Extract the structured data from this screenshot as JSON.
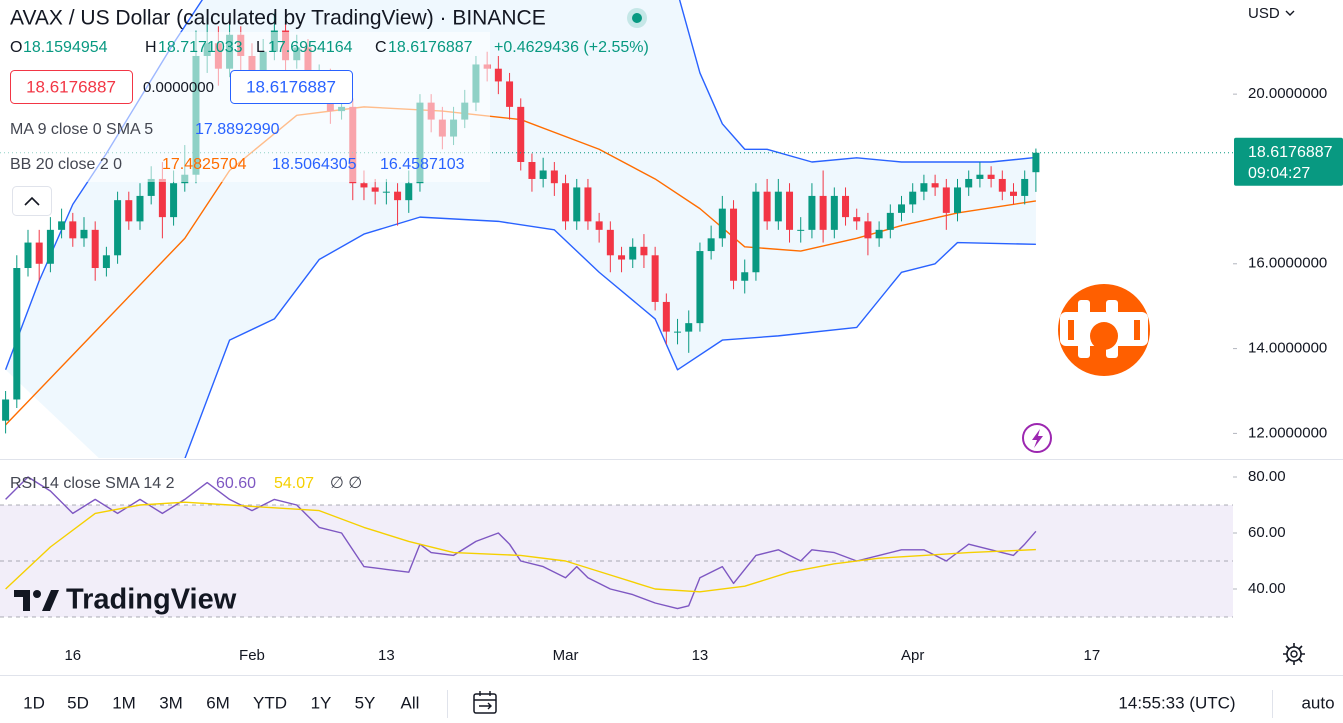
{
  "header": {
    "title": "AVAX / US Dollar (calculated by TradingView) · BINANCE",
    "ohlc_labels": [
      "O",
      "H",
      "L",
      "C"
    ],
    "change": "+0.4629436 (+2.55%)"
  },
  "trade_panel": {
    "sell": "18.6176887",
    "spread": "0.0000000",
    "buy": "18.6176887"
  },
  "chart_data": [
    {
      "type": "candlestick",
      "open": [
        12.3,
        12.8,
        15.9,
        16.5,
        16.0,
        16.8,
        17.0,
        16.6,
        16.8,
        15.9,
        16.2,
        17.5,
        17.0,
        17.6,
        18.0,
        17.1,
        17.9,
        18.1,
        20.9,
        21.2,
        20.6,
        21.4,
        20.9,
        20.5,
        21.0,
        21.5,
        20.8,
        21.1,
        20.2,
        20.4,
        19.6,
        19.7,
        17.9,
        17.8,
        17.7,
        17.7,
        17.5,
        17.9,
        19.8,
        19.4,
        19.0,
        19.4,
        19.8,
        20.7,
        20.6,
        20.3,
        19.7,
        18.4,
        18.0,
        18.2,
        17.9,
        17.0,
        17.8,
        17.0,
        16.8,
        16.2,
        16.1,
        16.4,
        16.2,
        15.1,
        14.4,
        14.4,
        14.6,
        16.3,
        16.6,
        17.3,
        15.6,
        15.8,
        17.7,
        17.0,
        17.7,
        16.8,
        16.8,
        17.6,
        16.8,
        17.6,
        17.1,
        17.0,
        16.6,
        16.8,
        17.2,
        17.4,
        17.7,
        17.9,
        17.8,
        17.2,
        17.8,
        18.0,
        18.1,
        18.0,
        17.7,
        17.6,
        18.1594954
      ],
      "high": [
        13.0,
        16.2,
        16.8,
        16.8,
        17.1,
        17.3,
        17.2,
        17.1,
        17.0,
        16.4,
        17.7,
        17.7,
        17.9,
        18.3,
        18.4,
        18.2,
        18.8,
        21.5,
        21.8,
        21.6,
        21.7,
        21.6,
        21.2,
        21.3,
        21.9,
        21.7,
        21.4,
        21.3,
        20.7,
        20.6,
        20.0,
        19.9,
        18.2,
        18.0,
        18.0,
        17.9,
        18.2,
        20.0,
        20.0,
        19.7,
        19.7,
        20.1,
        20.9,
        21.0,
        20.9,
        20.5,
        19.9,
        18.6,
        18.5,
        18.4,
        18.1,
        18.0,
        18.0,
        17.2,
        17.0,
        16.4,
        16.6,
        16.7,
        16.4,
        15.3,
        14.7,
        14.9,
        16.5,
        16.9,
        17.6,
        17.5,
        16.1,
        17.9,
        18.0,
        18.0,
        17.9,
        17.1,
        17.9,
        18.2,
        17.8,
        17.8,
        17.3,
        17.2,
        17.0,
        17.4,
        17.6,
        17.9,
        18.1,
        18.1,
        18.0,
        18.0,
        18.2,
        18.4,
        18.3,
        18.2,
        17.9,
        18.2,
        18.7171033
      ],
      "low": [
        12.0,
        12.6,
        15.7,
        15.6,
        15.8,
        16.6,
        16.4,
        16.4,
        15.6,
        15.7,
        16.0,
        16.8,
        16.8,
        17.4,
        16.6,
        16.9,
        17.7,
        17.9,
        20.5,
        20.2,
        20.4,
        20.5,
        20.1,
        20.2,
        20.8,
        20.5,
        20.6,
        19.9,
        19.9,
        19.3,
        19.4,
        17.5,
        17.5,
        17.4,
        17.4,
        16.9,
        17.2,
        17.7,
        19.1,
        18.7,
        18.8,
        19.2,
        19.6,
        20.3,
        20.0,
        19.4,
        18.2,
        17.7,
        17.8,
        17.6,
        16.8,
        16.8,
        16.8,
        16.5,
        15.8,
        15.8,
        15.9,
        15.9,
        14.9,
        14.1,
        14.1,
        13.9,
        14.4,
        16.1,
        16.4,
        15.4,
        15.3,
        15.6,
        16.8,
        16.8,
        16.5,
        16.5,
        16.6,
        16.5,
        16.6,
        16.9,
        16.8,
        16.2,
        16.4,
        16.6,
        17.0,
        17.2,
        17.5,
        17.6,
        16.8,
        17.0,
        17.6,
        17.8,
        17.8,
        17.5,
        17.4,
        17.4,
        17.6954164
      ],
      "close": [
        12.8,
        15.9,
        16.5,
        16.0,
        16.8,
        17.0,
        16.6,
        16.8,
        15.9,
        16.2,
        17.5,
        17.0,
        17.6,
        18.0,
        17.1,
        17.9,
        18.1,
        20.9,
        21.2,
        20.6,
        21.4,
        20.9,
        20.5,
        21.0,
        21.5,
        20.8,
        21.1,
        20.2,
        20.4,
        19.6,
        19.7,
        17.9,
        17.8,
        17.7,
        17.7,
        17.5,
        17.9,
        19.8,
        19.4,
        19.0,
        19.4,
        19.8,
        20.7,
        20.6,
        20.3,
        19.7,
        18.4,
        18.0,
        18.2,
        17.9,
        17.0,
        17.8,
        17.0,
        16.8,
        16.2,
        16.1,
        16.4,
        16.2,
        15.1,
        14.4,
        14.4,
        14.6,
        16.3,
        16.6,
        17.3,
        15.6,
        15.8,
        17.7,
        17.0,
        17.7,
        16.8,
        16.8,
        17.6,
        16.8,
        17.6,
        17.1,
        17.0,
        16.6,
        16.8,
        17.2,
        17.4,
        17.7,
        17.9,
        17.8,
        17.2,
        17.8,
        18.0,
        18.1,
        18.0,
        17.7,
        17.6,
        18.0,
        18.6176887
      ],
      "up_color": "#089981",
      "down_color": "#f23645",
      "xlim": [
        -0.5,
        109.6
      ],
      "xticks": [
        {
          "value": 6,
          "label": "16"
        },
        {
          "value": 22,
          "label": "Feb"
        },
        {
          "value": 34,
          "label": "13"
        },
        {
          "value": 50,
          "label": "Mar"
        },
        {
          "value": 62,
          "label": "13"
        },
        {
          "value": 81,
          "label": "Apr"
        },
        {
          "value": 97,
          "label": "17"
        }
      ],
      "ylim": [
        11.42,
        22.22
      ],
      "yticks": [
        {
          "value": 20,
          "label": "20.0000000"
        },
        {
          "value": 16,
          "label": "16.0000000"
        },
        {
          "value": 14,
          "label": "14.0000000"
        },
        {
          "value": 12,
          "label": "12.0000000"
        }
      ],
      "ma_legend": {
        "label": "MA 9 close 0 SMA 5",
        "value": "17.8892990",
        "color": "#2962ff"
      },
      "bollinger": {
        "label": "BB 20 close 2 0",
        "fill": "#2196f3",
        "basis": {
          "color": "#ff6d00",
          "x": [
            0,
            8,
            16,
            20,
            26,
            32,
            39,
            46,
            53,
            58,
            62,
            66,
            71,
            76,
            80,
            85,
            92
          ],
          "values": [
            12.2,
            14.4,
            16.6,
            18.2,
            19.5,
            19.7,
            19.6,
            19.4,
            18.7,
            18.0,
            17.3,
            16.4,
            16.3,
            16.6,
            16.9,
            17.2,
            17.4825704
          ]
        },
        "upper": {
          "color": "#2962ff",
          "x": [
            0,
            3,
            6,
            9,
            12,
            15,
            18,
            22,
            26,
            30,
            34,
            38,
            42,
            46,
            50,
            54,
            58,
            60,
            62,
            64,
            66,
            68,
            72,
            76,
            80,
            84,
            88,
            92
          ],
          "values": [
            13.5,
            15.6,
            17.4,
            18.6,
            19.9,
            21.2,
            22.4,
            23.2,
            23.5,
            23.3,
            22.9,
            22.7,
            22.6,
            22.7,
            22.8,
            22.9,
            23.0,
            22.4,
            20.5,
            19.3,
            18.7,
            18.7,
            18.4,
            18.5,
            18.4,
            18.4,
            18.4,
            18.5064305
          ]
        },
        "lower": {
          "color": "#2962ff",
          "x": [
            12,
            16,
            20,
            24,
            28,
            32,
            37,
            44,
            49,
            53,
            58,
            60,
            64,
            69,
            76,
            80,
            83,
            85,
            92
          ],
          "values": [
            10.5,
            11.4,
            14.2,
            14.7,
            16.1,
            16.7,
            17.1,
            17.0,
            16.8,
            15.8,
            14.7,
            13.5,
            14.2,
            14.3,
            14.5,
            15.8,
            16.0,
            16.5,
            16.4587103
          ]
        }
      }
    },
    {
      "type": "line",
      "label": "RSI 14 close SMA 14 2",
      "value_texts": [
        "60.60",
        "54.07",
        "∅ ∅"
      ],
      "xlim": [
        -0.5,
        109.6
      ],
      "ylim": [
        28.93,
        86.07
      ],
      "yticks": [
        {
          "value": 80,
          "label": "80.00"
        },
        {
          "value": 60,
          "label": "60.00"
        },
        {
          "value": 40,
          "label": "40.00"
        }
      ],
      "bands": {
        "upper": 70,
        "middle": 50,
        "lower": 30,
        "color": "#7e57c2"
      },
      "series": [
        {
          "color": "#7e57c2",
          "x": [
            0,
            2,
            4,
            6,
            8,
            10,
            12,
            14,
            16,
            18,
            20,
            22,
            24,
            26,
            28,
            30,
            32,
            34,
            36,
            37,
            38,
            40,
            42,
            44,
            45,
            46,
            48,
            50,
            51,
            52,
            54,
            56,
            58,
            60,
            61,
            62,
            64,
            65,
            67,
            69,
            71,
            72,
            74,
            76,
            78,
            80,
            82,
            84,
            86,
            88,
            90,
            91,
            92
          ],
          "values": [
            72,
            80,
            75,
            67,
            72,
            67,
            72,
            67,
            72,
            78,
            72,
            68,
            72,
            70,
            62,
            60,
            48,
            47,
            46,
            56,
            53,
            52,
            57,
            60,
            56,
            50,
            48,
            44,
            48,
            44,
            40,
            38,
            35,
            33,
            34,
            44,
            48,
            42,
            52,
            54,
            50,
            54,
            53,
            50,
            52,
            54,
            54,
            50,
            56,
            54,
            52,
            56,
            60.6
          ]
        },
        {
          "color": "#f5d000",
          "x": [
            0,
            4,
            8,
            12,
            16,
            20,
            24,
            28,
            32,
            36,
            40,
            46,
            50,
            54,
            58,
            62,
            66,
            70,
            74,
            78,
            82,
            86,
            92
          ],
          "values": [
            40,
            55,
            67,
            70,
            71,
            70,
            69,
            68,
            62,
            57,
            53,
            52,
            50,
            45,
            40,
            39,
            41,
            46,
            49,
            51,
            52,
            53,
            54.07
          ]
        }
      ]
    }
  ],
  "toolbar": {
    "currency": "USD",
    "countdown": "09:04:27",
    "ranges": [
      "1D",
      "5D",
      "1M",
      "3M",
      "6M",
      "YTD",
      "1Y",
      "5Y",
      "All"
    ],
    "clock": "14:55:33 (UTC)",
    "scale_mode": "auto"
  },
  "watermark": "TradingView"
}
